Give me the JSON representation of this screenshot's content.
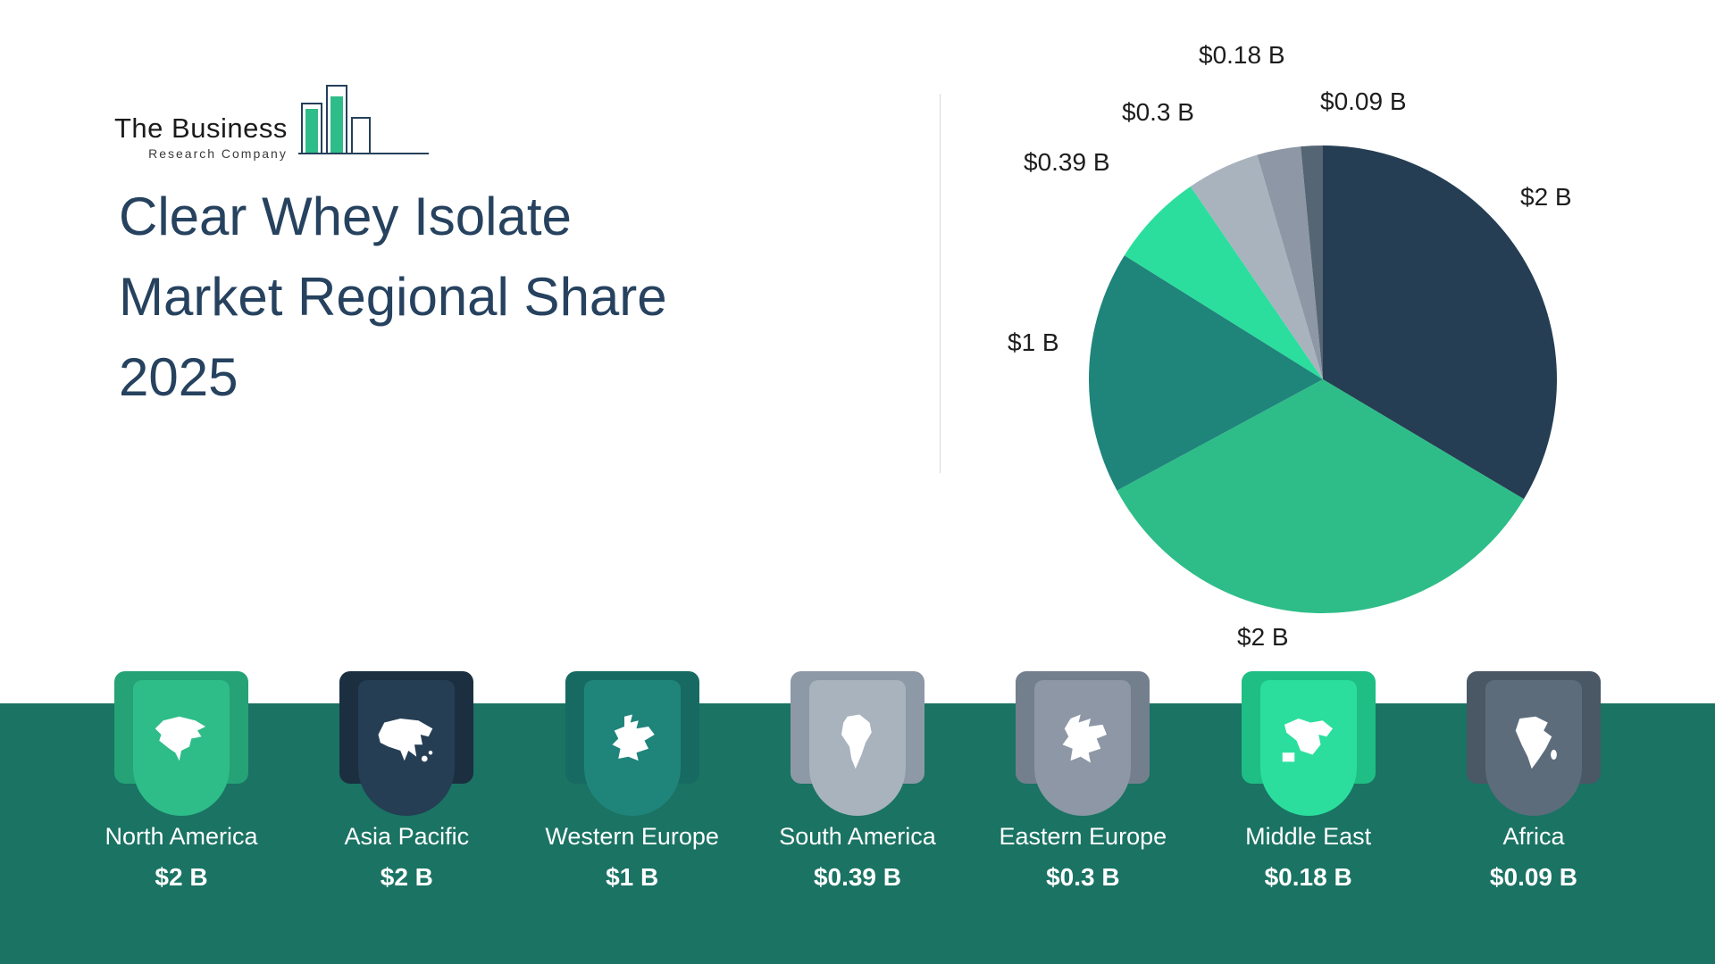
{
  "logo": {
    "line1": "The Business",
    "line2": "Research Company"
  },
  "title": {
    "line1": "Clear Whey Isolate",
    "line2": "Market Regional Share",
    "line3": "2025"
  },
  "chart_data": {
    "type": "pie",
    "title": "Clear Whey Isolate Market Regional Share 2025",
    "categories": [
      "Asia Pacific",
      "North America",
      "Western Europe",
      "South America",
      "Eastern Europe",
      "Middle East",
      "Africa"
    ],
    "values": [
      2,
      2,
      1,
      0.39,
      0.3,
      0.18,
      0.09
    ],
    "value_labels": [
      "$2 B",
      "$2 B",
      "$1 B",
      "$0.39 B",
      "$0.3 B",
      "$0.18 B",
      "$0.09 B"
    ],
    "colors": [
      "#253E54",
      "#2EBD88",
      "#1F857B",
      "#2BDE9D",
      "#A9B3BE",
      "#8D97A5",
      "#566574"
    ],
    "start_angle_deg": -90,
    "direction": "clockwise",
    "legend_position": "bottom"
  },
  "regions": [
    {
      "name": "North America",
      "value_label": "$2 B",
      "color": "#2EBD88",
      "ribbon": "#25A276"
    },
    {
      "name": "Asia Pacific",
      "value_label": "$2 B",
      "color": "#253E54",
      "ribbon": "#1B2F41"
    },
    {
      "name": "Western Europe",
      "value_label": "$1 B",
      "color": "#1F857B",
      "ribbon": "#176A62"
    },
    {
      "name": "South America",
      "value_label": "$0.39 B",
      "color": "#A9B3BE",
      "ribbon": "#8E99A7"
    },
    {
      "name": "Eastern Europe",
      "value_label": "$0.3 B",
      "color": "#8D97A5",
      "ribbon": "#747F8E"
    },
    {
      "name": "Middle East",
      "value_label": "$0.18 B",
      "color": "#2BDE9D",
      "ribbon": "#1FBE84"
    },
    {
      "name": "Africa",
      "value_label": "$0.09 B",
      "color": "#5D6C7B",
      "ribbon": "#4A5765"
    }
  ],
  "colors": {
    "band": "#1A7363",
    "title": "#26425F",
    "background": "#FFFFFF"
  }
}
